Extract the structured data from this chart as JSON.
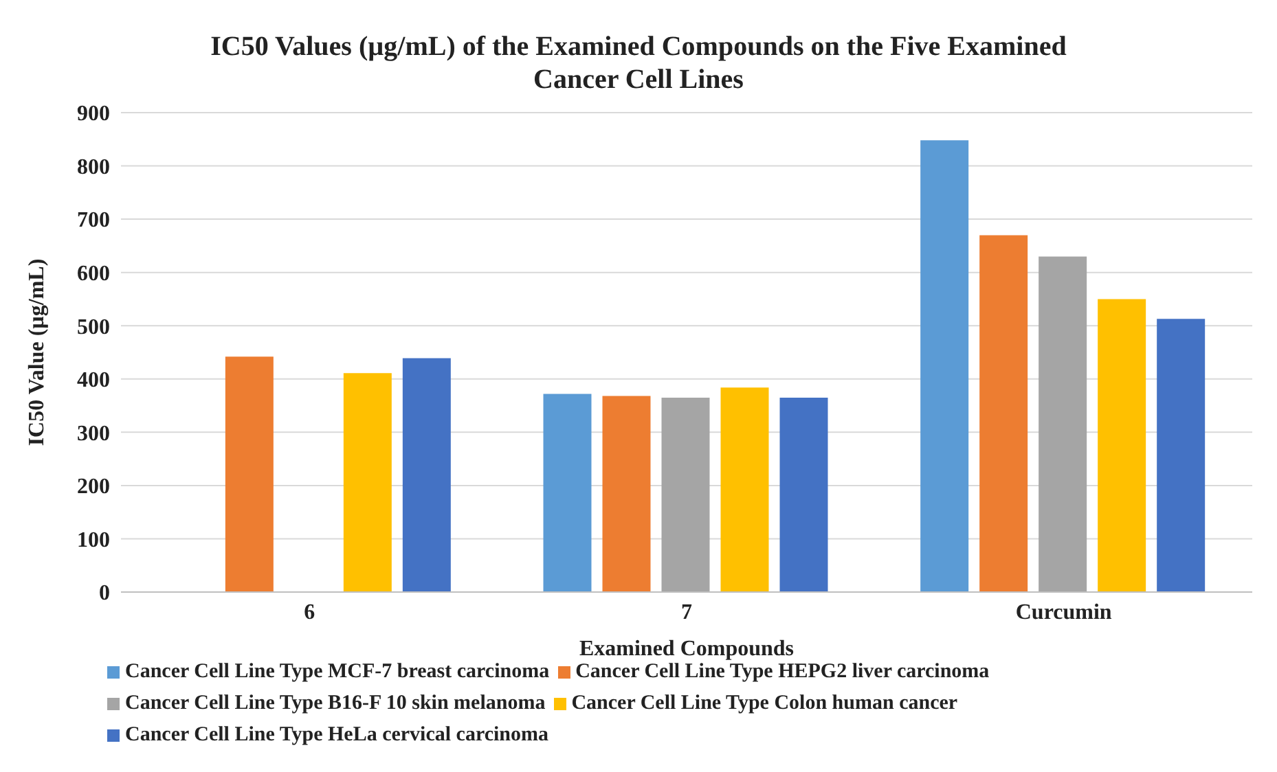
{
  "chart_data": {
    "type": "bar",
    "title": "IC50 Values (µg/mL) of the Examined Compounds on the Five Examined Cancer Cell Lines",
    "xlabel": "Examined Compounds",
    "ylabel": "IC50 Value (µg/mL)",
    "categories": [
      "6",
      "7",
      "Curcumin"
    ],
    "series": [
      {
        "name": "Cancer Cell Line Type MCF-7 breast carcinoma",
        "color": "#5b9bd5",
        "values": [
          null,
          372,
          848
        ]
      },
      {
        "name": "Cancer Cell Line Type HEPG2 liver carcinoma",
        "color": "#ed7d31",
        "values": [
          442,
          368,
          670
        ]
      },
      {
        "name": "Cancer Cell Line Type B16-F 10 skin melanoma",
        "color": "#a5a5a5",
        "values": [
          null,
          365,
          630
        ]
      },
      {
        "name": "Cancer Cell Line Type Colon human cancer",
        "color": "#ffc000",
        "values": [
          411,
          384,
          550
        ]
      },
      {
        "name": "Cancer Cell Line Type HeLa cervical carcinoma",
        "color": "#4472c4",
        "values": [
          439,
          365,
          513
        ]
      }
    ],
    "ylim": [
      0,
      900
    ],
    "yticks": [
      0,
      100,
      200,
      300,
      400,
      500,
      600,
      700,
      800,
      900
    ],
    "grid": "y",
    "legend": "bottom"
  }
}
